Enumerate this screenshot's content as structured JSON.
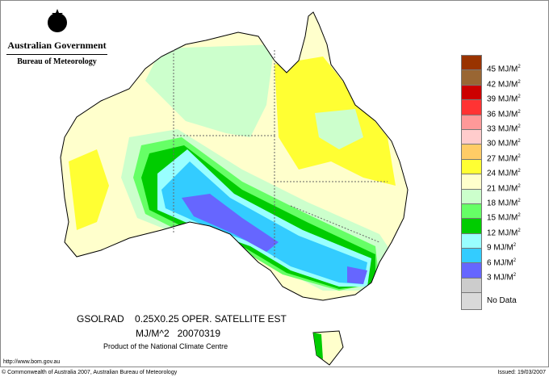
{
  "header": {
    "agency": "Australian Government",
    "bureau": "Bureau of Meteorology"
  },
  "legend": {
    "items": [
      {
        "label": "45 MJ/M",
        "sup": "2",
        "color": "#993300"
      },
      {
        "label": "42 MJ/M",
        "sup": "2",
        "color": "#996633"
      },
      {
        "label": "39 MJ/M",
        "sup": "2",
        "color": "#cc0000"
      },
      {
        "label": "36 MJ/M",
        "sup": "2",
        "color": "#ff3333"
      },
      {
        "label": "33 MJ/M",
        "sup": "2",
        "color": "#ff9999"
      },
      {
        "label": "30 MJ/M",
        "sup": "2",
        "color": "#ffcccc"
      },
      {
        "label": "27 MJ/M",
        "sup": "2",
        "color": "#ffcc66"
      },
      {
        "label": "24 MJ/M",
        "sup": "2",
        "color": "#ffff33"
      },
      {
        "label": "21 MJ/M",
        "sup": "2",
        "color": "#ffffcc"
      },
      {
        "label": "18 MJ/M",
        "sup": "2",
        "color": "#ccffcc"
      },
      {
        "label": "15 MJ/M",
        "sup": "2",
        "color": "#66ff66"
      },
      {
        "label": "12 MJ/M",
        "sup": "2",
        "color": "#00cc00"
      },
      {
        "label": "9 MJ/M",
        "sup": "2",
        "color": "#99ffff"
      },
      {
        "label": "6 MJ/M",
        "sup": "2",
        "color": "#33ccff"
      },
      {
        "label": "3 MJ/M",
        "sup": "2",
        "color": "#6666ff"
      },
      {
        "label": "",
        "sup": "",
        "color": "#cccccc"
      }
    ],
    "nodata": {
      "label": "No Data",
      "color": "#d9d9d9"
    }
  },
  "title": {
    "line1": "GSOLRAD    0.25X0.25 OPER. SATELLITE EST",
    "line2": "MJ/M^2   20070319",
    "line3": "Product of the National Climate Centre"
  },
  "footer": {
    "url": "http://www.bom.gov.au",
    "copyright": "© Commonwealth of Australia 2007, Australian Bureau of Meteorology",
    "issued": "Issued: 19/03/2007"
  }
}
